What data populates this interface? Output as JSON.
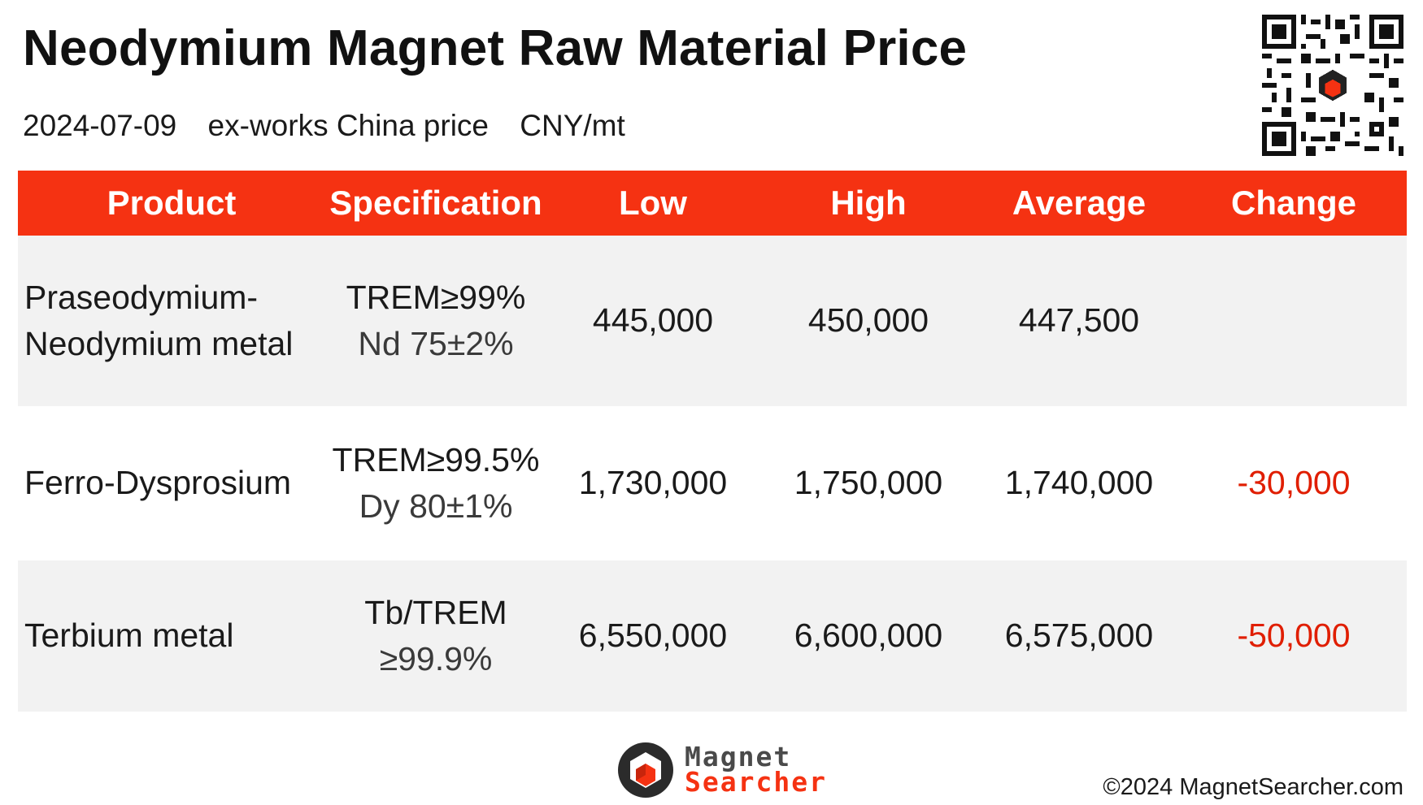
{
  "header": {
    "title": "Neodymium Magnet Raw Material Price",
    "date": "2024-07-09",
    "basis": "ex-works China price",
    "unit": "CNY/mt"
  },
  "table": {
    "columns": [
      "Product",
      "Specification",
      "Low",
      "High",
      "Average",
      "Change"
    ],
    "rows": [
      {
        "product": "Praseodymium-Neodymium metal",
        "spec_line1": "TREM≥99%",
        "spec_line2": "Nd 75±2%",
        "low": "445,000",
        "high": "450,000",
        "average": "447,500",
        "change": ""
      },
      {
        "product": "Ferro-Dysprosium",
        "spec_line1": "TREM≥99.5%",
        "spec_line2": "Dy 80±1%",
        "low": "1,730,000",
        "high": "1,750,000",
        "average": "1,740,000",
        "change": "-30,000"
      },
      {
        "product": "Terbium metal",
        "spec_line1": "Tb/TREM",
        "spec_line2": "≥99.9%",
        "low": "6,550,000",
        "high": "6,600,000",
        "average": "6,575,000",
        "change": "-50,000"
      }
    ]
  },
  "brand": {
    "line1": "Magnet",
    "line2": "Searcher",
    "copyright": "©2024 MagnetSearcher.com"
  },
  "colors": {
    "header_bg": "#f53212",
    "change_negative": "#e01e00",
    "row_shade": "#f2f2f2"
  },
  "icons": [
    "qr-code-icon",
    "magnet-searcher-logo-icon"
  ]
}
